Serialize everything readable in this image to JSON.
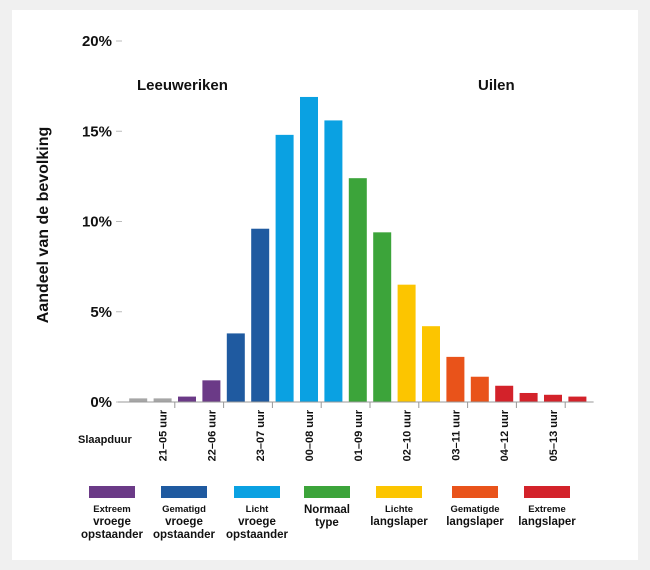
{
  "chart_data": {
    "type": "bar",
    "title": "",
    "ylabel": "Aandeel van de bevolking",
    "xlabel": "Slaapduur",
    "ylim": [
      0,
      20
    ],
    "yticks": [
      0,
      5,
      10,
      15,
      20
    ],
    "ytick_labels": [
      "0%",
      "5%",
      "10%",
      "15%",
      "20%"
    ],
    "group_labels": {
      "left": "Leeuweriken",
      "right": "Uilen"
    },
    "categories": [
      "",
      "21–05 uur",
      "",
      "22–06 uur",
      "",
      "23–07 uur",
      "",
      "00–08 uur",
      "",
      "01–09 uur",
      "",
      "02–10 uur",
      "",
      "03–11 uur",
      "",
      "04–12 uur",
      "",
      "05–13 uur",
      ""
    ],
    "values": [
      0.2,
      0.2,
      0.3,
      1.2,
      3.8,
      9.6,
      14.8,
      16.9,
      15.6,
      12.4,
      9.4,
      6.5,
      4.2,
      2.5,
      1.4,
      0.9,
      0.5,
      0.4,
      0.3
    ],
    "bar_types": [
      0,
      0,
      1,
      1,
      2,
      2,
      3,
      3,
      3,
      4,
      4,
      5,
      5,
      6,
      6,
      7,
      7,
      7,
      7
    ]
  },
  "types": [
    {
      "line1": "Extreem",
      "line2": "vroege",
      "line3": "opstaander",
      "color": "#6b3a87"
    },
    {
      "line1": "Gematigd",
      "line2": "vroege",
      "line3": "opstaander",
      "color": "#1f5aa0"
    },
    {
      "line1": "Licht",
      "line2": "vroege",
      "line3": "opstaander",
      "color": "#0aa1e2"
    },
    {
      "line1": "Normaal",
      "line2": "type",
      "line3": "",
      "color": "#3ca43a"
    },
    {
      "line1": "Lichte",
      "line2": "langslaper",
      "line3": "",
      "color": "#fcc500"
    },
    {
      "line1": "Gematigde",
      "line2": "langslaper",
      "line3": "",
      "color": "#e9531a"
    },
    {
      "line1": "Extreme",
      "line2": "langslaper",
      "line3": "",
      "color": "#d3222a"
    }
  ],
  "neutral_color": "#a6a6a6"
}
